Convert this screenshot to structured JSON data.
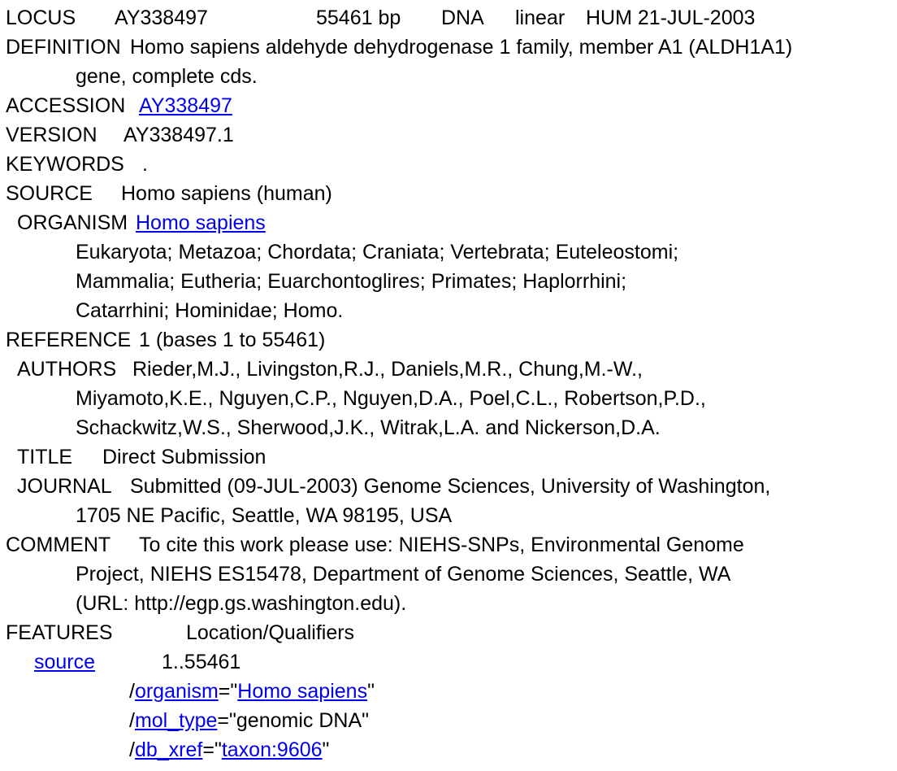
{
  "record": {
    "locus": {
      "label": "LOCUS",
      "name": "AY338497",
      "length": "55461 bp",
      "mol_type": "DNA",
      "topology": "linear",
      "division_date": "HUM 21-JUL-2003"
    },
    "definition": {
      "label": "DEFINITION",
      "lines": [
        "Homo sapiens aldehyde dehydrogenase 1 family, member A1 (ALDH1A1)",
        "gene, complete cds."
      ]
    },
    "accession": {
      "label": "ACCESSION",
      "link_text": "AY338497"
    },
    "version": {
      "label": "VERSION",
      "value": "AY338497.1"
    },
    "keywords": {
      "label": "KEYWORDS",
      "value": "."
    },
    "source": {
      "label": "SOURCE",
      "value": "Homo sapiens (human)"
    },
    "organism": {
      "label": "ORGANISM",
      "link_text": "Homo sapiens",
      "lineage": [
        "Eukaryota; Metazoa; Chordata; Craniata; Vertebrata; Euteleostomi;",
        "Mammalia; Eutheria; Euarchontoglires; Primates; Haplorrhini;",
        "Catarrhini; Hominidae; Homo."
      ]
    },
    "reference": {
      "label": "REFERENCE",
      "value": "1  (bases 1 to 55461)"
    },
    "authors": {
      "label": "AUTHORS",
      "lines": [
        "Rieder,M.J., Livingston,R.J., Daniels,M.R., Chung,M.-W.,",
        "Miyamoto,K.E., Nguyen,C.P., Nguyen,D.A., Poel,C.L., Robertson,P.D.,",
        "Schackwitz,W.S., Sherwood,J.K., Witrak,L.A. and Nickerson,D.A."
      ]
    },
    "title": {
      "label": "TITLE",
      "value": "Direct Submission"
    },
    "journal": {
      "label": "JOURNAL",
      "lines": [
        "Submitted (09-JUL-2003) Genome Sciences, University of Washington,",
        "1705 NE Pacific, Seattle, WA 98195, USA"
      ]
    },
    "comment": {
      "label": "COMMENT",
      "lines": [
        "To cite this work please use:  NIEHS-SNPs, Environmental Genome",
        "Project, NIEHS ES15478, Department of Genome Sciences, Seattle, WA",
        "(URL: http://egp.gs.washington.edu)."
      ]
    },
    "features": {
      "label": "FEATURES",
      "header": "Location/Qualifiers",
      "source_feature": {
        "key_link": "source",
        "location": "1..55461",
        "qualifiers": {
          "organism": {
            "name": "organism",
            "value_link": "Homo sapiens"
          },
          "mol_type": {
            "name": "mol_type",
            "value": "genomic DNA"
          },
          "db_xref": {
            "name": "db_xref",
            "value_link": "taxon:9606"
          }
        }
      }
    }
  }
}
